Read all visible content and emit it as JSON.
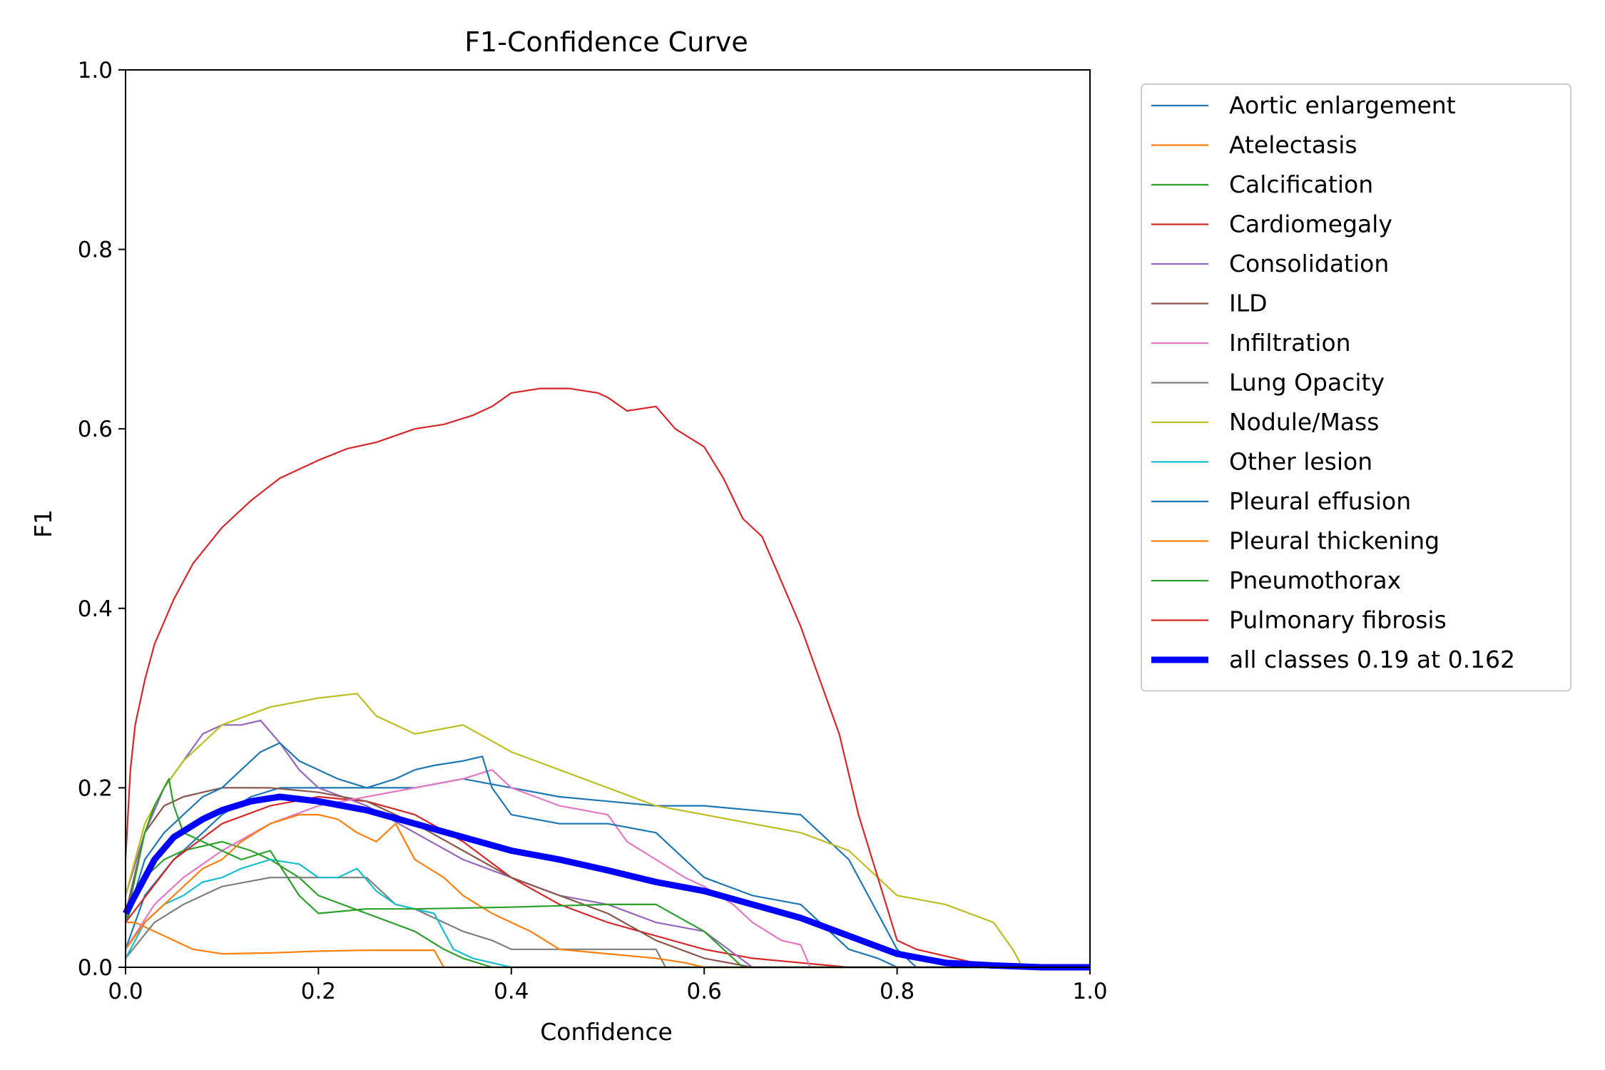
{
  "chart_data": {
    "type": "line",
    "title": "F1-Confidence Curve",
    "xlabel": "Confidence",
    "ylabel": "F1",
    "xlim": [
      0.0,
      1.0
    ],
    "ylim": [
      0.0,
      1.0
    ],
    "xticks": [
      "0.0",
      "0.2",
      "0.4",
      "0.6",
      "0.8",
      "1.0"
    ],
    "yticks": [
      "0.0",
      "0.2",
      "0.4",
      "0.6",
      "0.8",
      "1.0"
    ],
    "grid": false,
    "legend_position": "outside right, top",
    "series": [
      {
        "name": "Aortic enlargement",
        "color": "#1f77b4",
        "x": [
          0.0,
          0.02,
          0.05,
          0.08,
          0.1,
          0.13,
          0.16,
          0.2,
          0.25,
          0.3,
          0.35,
          0.4,
          0.45,
          0.5,
          0.55,
          0.6,
          0.65,
          0.7,
          0.75,
          0.8,
          0.82,
          1.0
        ],
        "y": [
          0.02,
          0.08,
          0.12,
          0.15,
          0.17,
          0.19,
          0.2,
          0.2,
          0.2,
          0.2,
          0.21,
          0.2,
          0.19,
          0.185,
          0.18,
          0.18,
          0.175,
          0.17,
          0.12,
          0.02,
          0.0,
          0.0
        ]
      },
      {
        "name": "Atelectasis",
        "color": "#ff7f0e",
        "x": [
          0.0,
          0.01,
          0.03,
          0.05,
          0.07,
          0.1,
          0.15,
          0.2,
          0.25,
          0.3,
          0.32,
          0.33,
          1.0
        ],
        "y": [
          0.05,
          0.05,
          0.04,
          0.03,
          0.02,
          0.015,
          0.016,
          0.018,
          0.019,
          0.019,
          0.019,
          0.0,
          0.0
        ]
      },
      {
        "name": "Calcification",
        "color": "#2ca02c",
        "x": [
          0.0,
          0.02,
          0.04,
          0.06,
          0.08,
          0.1,
          0.13,
          0.15,
          0.18,
          0.2,
          0.25,
          0.3,
          0.33,
          0.35,
          0.38,
          1.0
        ],
        "y": [
          0.05,
          0.1,
          0.12,
          0.13,
          0.135,
          0.14,
          0.13,
          0.12,
          0.1,
          0.08,
          0.06,
          0.04,
          0.02,
          0.01,
          0.0,
          0.0
        ]
      },
      {
        "name": "Cardiomegaly",
        "color": "#d62728",
        "x": [
          0.0,
          0.05,
          0.1,
          0.15,
          0.2,
          0.25,
          0.3,
          0.35,
          0.4,
          0.45,
          0.5,
          0.55,
          0.6,
          0.65,
          0.7,
          0.75,
          1.0
        ],
        "y": [
          0.05,
          0.12,
          0.16,
          0.18,
          0.19,
          0.185,
          0.17,
          0.14,
          0.1,
          0.07,
          0.05,
          0.035,
          0.02,
          0.01,
          0.005,
          0.0,
          0.0
        ]
      },
      {
        "name": "Consolidation",
        "color": "#9467bd",
        "x": [
          0.0,
          0.02,
          0.04,
          0.06,
          0.08,
          0.1,
          0.12,
          0.14,
          0.16,
          0.18,
          0.2,
          0.25,
          0.3,
          0.35,
          0.4,
          0.45,
          0.5,
          0.55,
          0.6,
          0.65,
          1.0
        ],
        "y": [
          0.08,
          0.15,
          0.2,
          0.23,
          0.26,
          0.27,
          0.27,
          0.275,
          0.25,
          0.22,
          0.2,
          0.18,
          0.15,
          0.12,
          0.1,
          0.08,
          0.07,
          0.05,
          0.04,
          0.0,
          0.0
        ]
      },
      {
        "name": "ILD",
        "color": "#8c564b",
        "x": [
          0.0,
          0.02,
          0.04,
          0.06,
          0.08,
          0.1,
          0.15,
          0.2,
          0.25,
          0.3,
          0.35,
          0.4,
          0.45,
          0.5,
          0.55,
          0.6,
          0.65,
          1.0
        ],
        "y": [
          0.06,
          0.15,
          0.18,
          0.19,
          0.195,
          0.2,
          0.2,
          0.195,
          0.185,
          0.16,
          0.13,
          0.1,
          0.08,
          0.06,
          0.03,
          0.01,
          0.0,
          0.0
        ]
      },
      {
        "name": "Infiltration",
        "color": "#e377c2",
        "x": [
          0.0,
          0.03,
          0.06,
          0.1,
          0.15,
          0.2,
          0.25,
          0.3,
          0.35,
          0.38,
          0.4,
          0.45,
          0.5,
          0.52,
          0.55,
          0.58,
          0.6,
          0.63,
          0.65,
          0.68,
          0.7,
          0.71,
          1.0
        ],
        "y": [
          0.02,
          0.07,
          0.1,
          0.13,
          0.16,
          0.18,
          0.19,
          0.2,
          0.21,
          0.22,
          0.2,
          0.18,
          0.17,
          0.14,
          0.12,
          0.1,
          0.09,
          0.07,
          0.05,
          0.03,
          0.025,
          0.0,
          0.0
        ]
      },
      {
        "name": "Lung Opacity",
        "color": "#7f7f7f",
        "x": [
          0.0,
          0.03,
          0.06,
          0.1,
          0.15,
          0.2,
          0.25,
          0.28,
          0.3,
          0.33,
          0.35,
          0.38,
          0.4,
          0.45,
          0.5,
          0.55,
          0.56,
          1.0
        ],
        "y": [
          0.01,
          0.05,
          0.07,
          0.09,
          0.1,
          0.1,
          0.1,
          0.07,
          0.065,
          0.05,
          0.04,
          0.03,
          0.02,
          0.02,
          0.02,
          0.02,
          0.0,
          0.0
        ]
      },
      {
        "name": "Nodule/Mass",
        "color": "#bcbd22",
        "x": [
          0.0,
          0.02,
          0.04,
          0.06,
          0.08,
          0.1,
          0.15,
          0.2,
          0.24,
          0.26,
          0.28,
          0.3,
          0.35,
          0.4,
          0.45,
          0.5,
          0.55,
          0.6,
          0.65,
          0.7,
          0.75,
          0.78,
          0.8,
          0.85,
          0.9,
          0.92,
          0.93,
          1.0
        ],
        "y": [
          0.08,
          0.16,
          0.2,
          0.23,
          0.25,
          0.27,
          0.29,
          0.3,
          0.305,
          0.28,
          0.27,
          0.26,
          0.27,
          0.24,
          0.22,
          0.2,
          0.18,
          0.17,
          0.16,
          0.15,
          0.13,
          0.1,
          0.08,
          0.07,
          0.05,
          0.02,
          0.0,
          0.0
        ]
      },
      {
        "name": "Other lesion",
        "color": "#17becf",
        "x": [
          0.0,
          0.02,
          0.04,
          0.06,
          0.08,
          0.1,
          0.12,
          0.15,
          0.18,
          0.2,
          0.22,
          0.24,
          0.26,
          0.28,
          0.3,
          0.32,
          0.34,
          0.36,
          0.38,
          0.4,
          1.0
        ],
        "y": [
          0.01,
          0.05,
          0.07,
          0.08,
          0.095,
          0.1,
          0.11,
          0.12,
          0.115,
          0.1,
          0.1,
          0.11,
          0.085,
          0.07,
          0.065,
          0.06,
          0.02,
          0.01,
          0.005,
          0.0,
          0.0
        ]
      },
      {
        "name": "Pleural effusion",
        "color": "#1f77b4",
        "x": [
          0.0,
          0.02,
          0.04,
          0.06,
          0.08,
          0.1,
          0.12,
          0.14,
          0.16,
          0.18,
          0.2,
          0.22,
          0.25,
          0.28,
          0.3,
          0.32,
          0.35,
          0.37,
          0.38,
          0.4,
          0.45,
          0.5,
          0.55,
          0.6,
          0.65,
          0.7,
          0.72,
          0.74,
          0.75,
          0.78,
          0.8,
          1.0
        ],
        "y": [
          0.05,
          0.12,
          0.15,
          0.17,
          0.19,
          0.2,
          0.22,
          0.24,
          0.25,
          0.23,
          0.22,
          0.21,
          0.2,
          0.21,
          0.22,
          0.225,
          0.23,
          0.235,
          0.2,
          0.17,
          0.16,
          0.16,
          0.15,
          0.1,
          0.08,
          0.07,
          0.05,
          0.03,
          0.02,
          0.01,
          0.0,
          0.0
        ]
      },
      {
        "name": "Pleural thickening",
        "color": "#ff7f0e",
        "x": [
          0.0,
          0.02,
          0.04,
          0.06,
          0.08,
          0.1,
          0.12,
          0.15,
          0.18,
          0.2,
          0.22,
          0.24,
          0.26,
          0.28,
          0.3,
          0.33,
          0.35,
          0.38,
          0.4,
          0.42,
          0.45,
          0.5,
          0.55,
          0.58,
          0.6,
          1.0
        ],
        "y": [
          0.02,
          0.05,
          0.07,
          0.09,
          0.11,
          0.12,
          0.14,
          0.16,
          0.17,
          0.17,
          0.165,
          0.15,
          0.14,
          0.16,
          0.12,
          0.1,
          0.08,
          0.06,
          0.05,
          0.04,
          0.02,
          0.015,
          0.01,
          0.005,
          0.0,
          0.0
        ]
      },
      {
        "name": "Pneumothorax",
        "color": "#2ca02c",
        "x": [
          0.0,
          0.01,
          0.02,
          0.03,
          0.04,
          0.045,
          0.05,
          0.06,
          0.08,
          0.1,
          0.12,
          0.15,
          0.18,
          0.2,
          0.25,
          0.3,
          0.4,
          0.5,
          0.55,
          0.6,
          0.62,
          0.64,
          1.0
        ],
        "y": [
          0.05,
          0.1,
          0.15,
          0.18,
          0.2,
          0.21,
          0.18,
          0.15,
          0.14,
          0.13,
          0.12,
          0.13,
          0.08,
          0.06,
          0.065,
          0.065,
          0.067,
          0.07,
          0.07,
          0.04,
          0.02,
          0.0,
          0.0
        ]
      },
      {
        "name": "Pulmonary fibrosis",
        "color": "#d62728",
        "x": [
          0.0,
          0.005,
          0.01,
          0.02,
          0.03,
          0.05,
          0.07,
          0.1,
          0.13,
          0.16,
          0.2,
          0.23,
          0.26,
          0.3,
          0.33,
          0.36,
          0.38,
          0.4,
          0.43,
          0.46,
          0.49,
          0.5,
          0.52,
          0.55,
          0.57,
          0.6,
          0.62,
          0.64,
          0.66,
          0.68,
          0.7,
          0.72,
          0.74,
          0.76,
          0.78,
          0.8,
          0.82,
          0.84,
          0.86,
          0.88,
          0.9,
          1.0
        ],
        "y": [
          0.12,
          0.22,
          0.27,
          0.32,
          0.36,
          0.41,
          0.45,
          0.49,
          0.52,
          0.545,
          0.565,
          0.578,
          0.585,
          0.6,
          0.605,
          0.615,
          0.625,
          0.64,
          0.645,
          0.645,
          0.64,
          0.635,
          0.62,
          0.625,
          0.6,
          0.58,
          0.545,
          0.5,
          0.48,
          0.43,
          0.38,
          0.32,
          0.26,
          0.17,
          0.1,
          0.03,
          0.02,
          0.015,
          0.01,
          0.005,
          0.0,
          0.0
        ]
      },
      {
        "name": "all classes 0.19 at 0.162",
        "color": "#0000ff",
        "thick": true,
        "x": [
          0.0,
          0.01,
          0.02,
          0.03,
          0.05,
          0.08,
          0.1,
          0.13,
          0.16,
          0.2,
          0.25,
          0.3,
          0.35,
          0.4,
          0.45,
          0.5,
          0.55,
          0.6,
          0.65,
          0.7,
          0.75,
          0.8,
          0.85,
          0.9,
          0.95,
          1.0
        ],
        "y": [
          0.06,
          0.08,
          0.1,
          0.12,
          0.145,
          0.165,
          0.175,
          0.185,
          0.19,
          0.185,
          0.175,
          0.16,
          0.145,
          0.13,
          0.12,
          0.108,
          0.095,
          0.085,
          0.07,
          0.055,
          0.035,
          0.015,
          0.005,
          0.002,
          0.0,
          0.0
        ]
      }
    ]
  }
}
